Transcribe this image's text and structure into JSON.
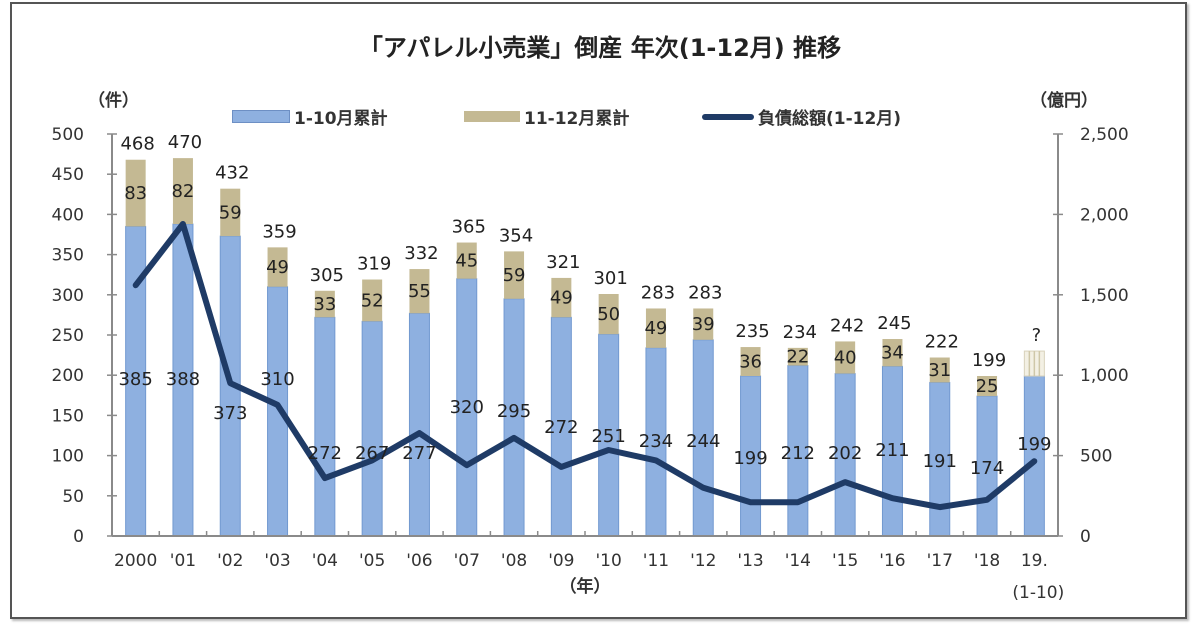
{
  "chart_data": {
    "type": "bar",
    "title": "「アパレル小売業」倒産 年次(1-12月) 推移",
    "left_axis_unit": "（件）",
    "right_axis_unit": "（億円）",
    "xlabel": "（年）",
    "categories": [
      "2000",
      "'01",
      "'02",
      "'03",
      "'04",
      "'05",
      "'06",
      "'07",
      "'08",
      "'09",
      "'10",
      "'11",
      "'12",
      "'13",
      "'14",
      "'15",
      "'16",
      "'17",
      "'18",
      "19."
    ],
    "last_category_sublabel": "(1-10)",
    "ylim_left": [
      0,
      500
    ],
    "yticks_left": [
      "0",
      "50",
      "100",
      "150",
      "200",
      "250",
      "300",
      "350",
      "400",
      "450",
      "500"
    ],
    "ylim_right": [
      0,
      2500
    ],
    "yticks_right": [
      "0",
      "500",
      "1,000",
      "1,500",
      "2,000",
      "2,500"
    ],
    "stacked": true,
    "series": [
      {
        "name": "1-10月累計",
        "type": "bar",
        "axis": "left",
        "color": "#8eb0e0",
        "values": [
          385,
          388,
          373,
          310,
          272,
          267,
          277,
          320,
          295,
          272,
          251,
          234,
          244,
          199,
          212,
          202,
          211,
          191,
          174,
          199
        ]
      },
      {
        "name": "11-12月累計",
        "type": "bar",
        "axis": "left",
        "color": "#c4b993",
        "values": [
          83,
          82,
          59,
          49,
          33,
          52,
          55,
          45,
          59,
          49,
          50,
          49,
          39,
          36,
          22,
          40,
          34,
          31,
          25,
          null
        ]
      },
      {
        "name": "負債総額(1-12月)",
        "type": "line",
        "axis": "right",
        "color": "#1f3b66",
        "values": [
          1560,
          1940,
          950,
          815,
          360,
          470,
          640,
          440,
          610,
          430,
          535,
          470,
          300,
          210,
          210,
          335,
          235,
          180,
          225,
          465
        ]
      }
    ],
    "totals": [
      "468",
      "470",
      "432",
      "359",
      "305",
      "319",
      "332",
      "365",
      "354",
      "321",
      "301",
      "283",
      "283",
      "235",
      "234",
      "242",
      "245",
      "222",
      "199",
      "?"
    ],
    "last_bar_placeholder_value": 230,
    "legend": [
      "1-10月累計",
      "11-12月累計",
      "負債総額(1-12月)"
    ],
    "legend_position": "top-center",
    "grid": false
  }
}
